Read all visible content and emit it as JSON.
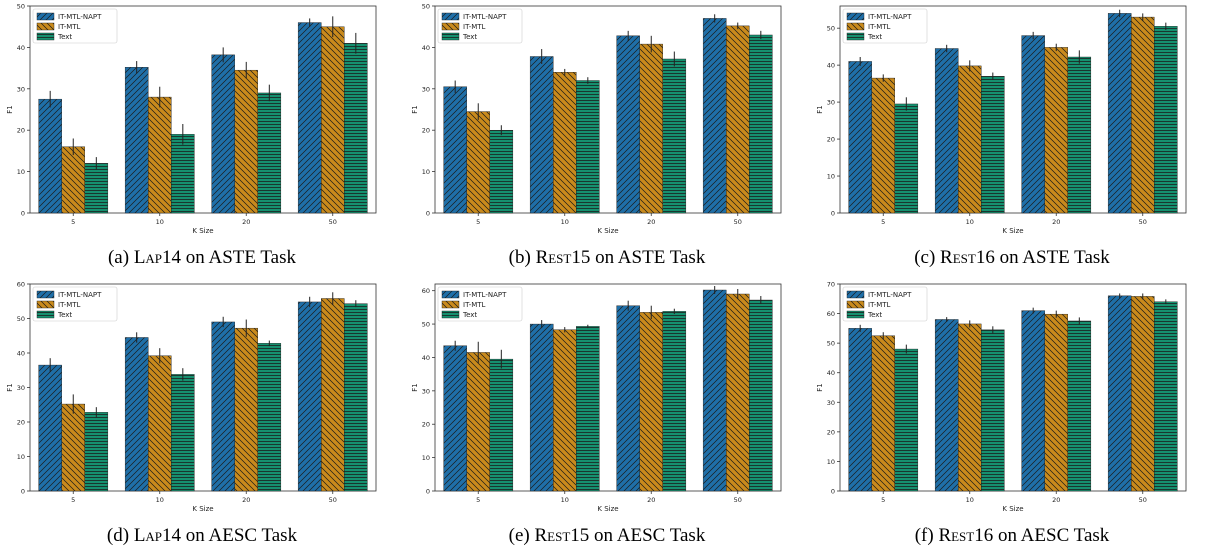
{
  "legend_labels": [
    "IT-MTL-NAPT",
    "IT-MTL",
    "Text"
  ],
  "colors": {
    "IT-MTL-NAPT": "#1f6fa8",
    "IT-MTL": "#c98a1c",
    "Text": "#16906f",
    "error": "#222222"
  },
  "hatches": {
    "IT-MTL-NAPT": "diagonal-forward",
    "IT-MTL": "diagonal-back",
    "Text": "horizontal"
  },
  "chart_data": [
    {
      "type": "bar",
      "caption": {
        "prefix": "(a) ",
        "dataset": "Lap14",
        "suffix": " on ASTE Task"
      },
      "xlabel": "K Size",
      "ylabel": "F1",
      "categories": [
        "5",
        "10",
        "20",
        "50"
      ],
      "ylim": [
        0,
        50
      ],
      "yticks": [
        0,
        10,
        20,
        30,
        40,
        50
      ],
      "legend_position": "top-left",
      "series": [
        {
          "name": "IT-MTL-NAPT",
          "values": [
            27.5,
            35.2,
            38.2,
            46.0
          ],
          "errors": [
            2.0,
            1.5,
            1.8,
            1.0
          ]
        },
        {
          "name": "IT-MTL",
          "values": [
            16.0,
            28.0,
            34.5,
            45.0
          ],
          "errors": [
            2.0,
            2.5,
            2.0,
            2.5
          ]
        },
        {
          "name": "Text",
          "values": [
            12.0,
            19.0,
            29.0,
            41.0
          ],
          "errors": [
            1.5,
            2.5,
            2.0,
            2.5
          ]
        }
      ]
    },
    {
      "type": "bar",
      "caption": {
        "prefix": "(b) ",
        "dataset": "Rest15",
        "suffix": " on ASTE Task"
      },
      "xlabel": "K Size",
      "ylabel": "F1",
      "categories": [
        "5",
        "10",
        "20",
        "50"
      ],
      "ylim": [
        0,
        50
      ],
      "yticks": [
        0,
        10,
        20,
        30,
        40,
        50
      ],
      "legend_position": "top-left",
      "series": [
        {
          "name": "IT-MTL-NAPT",
          "values": [
            30.5,
            37.8,
            42.8,
            47.0
          ],
          "errors": [
            1.5,
            1.8,
            1.2,
            1.0
          ]
        },
        {
          "name": "IT-MTL",
          "values": [
            24.5,
            34.0,
            40.8,
            45.2
          ],
          "errors": [
            2.0,
            0.8,
            2.0,
            0.8
          ]
        },
        {
          "name": "Text",
          "values": [
            20.0,
            32.0,
            37.2,
            43.0
          ],
          "errors": [
            1.2,
            0.8,
            1.8,
            1.0
          ]
        }
      ]
    },
    {
      "type": "bar",
      "caption": {
        "prefix": "(c) ",
        "dataset": "Rest16",
        "suffix": " on ASTE Task"
      },
      "xlabel": "K Size",
      "ylabel": "F1",
      "categories": [
        "5",
        "10",
        "20",
        "50"
      ],
      "ylim": [
        0,
        56
      ],
      "yticks": [
        0,
        10,
        20,
        30,
        40,
        50
      ],
      "legend_position": "top-left",
      "series": [
        {
          "name": "IT-MTL-NAPT",
          "values": [
            41.0,
            44.5,
            48.0,
            54.0
          ],
          "errors": [
            1.2,
            1.0,
            1.0,
            1.0
          ]
        },
        {
          "name": "IT-MTL",
          "values": [
            36.5,
            39.8,
            44.8,
            53.0
          ],
          "errors": [
            1.0,
            1.5,
            1.0,
            1.0
          ]
        },
        {
          "name": "Text",
          "values": [
            29.5,
            37.0,
            42.2,
            50.5
          ],
          "errors": [
            1.8,
            1.0,
            1.8,
            1.0
          ]
        }
      ]
    },
    {
      "type": "bar",
      "caption": {
        "prefix": "(d) ",
        "dataset": "Lap14",
        "suffix": " on AESC Task"
      },
      "xlabel": "K Size",
      "ylabel": "F1",
      "categories": [
        "5",
        "10",
        "20",
        "50"
      ],
      "ylim": [
        0,
        60
      ],
      "yticks": [
        0,
        10,
        20,
        30,
        40,
        50,
        60
      ],
      "legend_position": "top-left",
      "series": [
        {
          "name": "IT-MTL-NAPT",
          "values": [
            36.5,
            44.5,
            49.0,
            54.8
          ],
          "errors": [
            2.0,
            1.5,
            1.5,
            1.5
          ]
        },
        {
          "name": "IT-MTL",
          "values": [
            25.2,
            39.2,
            47.2,
            55.8
          ],
          "errors": [
            2.8,
            2.2,
            2.5,
            1.8
          ]
        },
        {
          "name": "Text",
          "values": [
            22.8,
            33.8,
            42.8,
            54.3
          ],
          "errors": [
            1.5,
            1.8,
            0.8,
            1.0
          ]
        }
      ]
    },
    {
      "type": "bar",
      "caption": {
        "prefix": "(e) ",
        "dataset": "Rest15",
        "suffix": " on AESC Task"
      },
      "xlabel": "K Size",
      "ylabel": "F1",
      "categories": [
        "5",
        "10",
        "20",
        "50"
      ],
      "ylim": [
        0,
        62
      ],
      "yticks": [
        0,
        10,
        20,
        30,
        40,
        50,
        60
      ],
      "legend_position": "top-left",
      "series": [
        {
          "name": "IT-MTL-NAPT",
          "values": [
            43.5,
            50.0,
            55.5,
            60.2
          ],
          "errors": [
            1.5,
            1.2,
            1.5,
            1.2
          ]
        },
        {
          "name": "IT-MTL",
          "values": [
            41.5,
            48.3,
            53.5,
            59.0
          ],
          "errors": [
            3.2,
            0.8,
            2.0,
            1.5
          ]
        },
        {
          "name": "Text",
          "values": [
            39.5,
            49.3,
            53.8,
            57.2
          ],
          "errors": [
            2.8,
            0.5,
            0.8,
            1.2
          ]
        }
      ]
    },
    {
      "type": "bar",
      "caption": {
        "prefix": "(f) ",
        "dataset": "Rest16",
        "suffix": " on AESC Task"
      },
      "xlabel": "K Size",
      "ylabel": "F1",
      "categories": [
        "5",
        "10",
        "20",
        "50"
      ],
      "ylim": [
        0,
        70
      ],
      "yticks": [
        0,
        10,
        20,
        30,
        40,
        50,
        60,
        70
      ],
      "legend_position": "top-left",
      "series": [
        {
          "name": "IT-MTL-NAPT",
          "values": [
            55.0,
            58.0,
            61.0,
            66.0
          ],
          "errors": [
            1.2,
            0.8,
            1.0,
            0.8
          ]
        },
        {
          "name": "IT-MTL",
          "values": [
            52.5,
            56.5,
            59.8,
            65.8
          ],
          "errors": [
            1.2,
            1.2,
            1.2,
            1.0
          ]
        },
        {
          "name": "Text",
          "values": [
            48.0,
            54.5,
            57.5,
            64.0
          ],
          "errors": [
            1.5,
            1.2,
            1.2,
            0.8
          ]
        }
      ]
    }
  ]
}
